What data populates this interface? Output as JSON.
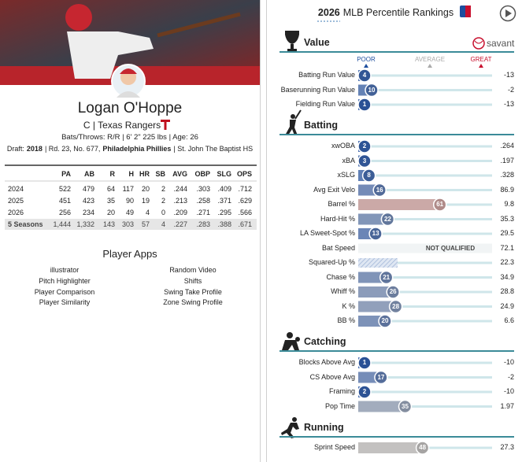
{
  "player": {
    "name": "Logan O'Hoppe",
    "team_line": "C | Texas Rangers",
    "bio": "Bats/Throws: R/R | 6' 2\" 225 lbs | Age: 26",
    "draft": [
      "Draft:",
      "2018",
      "| Rd. 23, No. 677,",
      "Philadelphia Phillies",
      "| St. John The Baptist HS"
    ]
  },
  "stats_table": {
    "columns": [
      "PA",
      "AB",
      "R",
      "H",
      "HR",
      "SB",
      "AVG",
      "OBP",
      "SLG",
      "OPS"
    ],
    "rows": [
      [
        "2024",
        "522",
        "479",
        "64",
        "117",
        "20",
        "2",
        ".244",
        ".303",
        ".409",
        ".712"
      ],
      [
        "2025",
        "451",
        "423",
        "35",
        "90",
        "19",
        "2",
        ".213",
        ".258",
        ".371",
        ".629"
      ],
      [
        "2026",
        "256",
        "234",
        "20",
        "49",
        "4",
        "0",
        ".209",
        ".271",
        ".295",
        ".566"
      ],
      [
        "5 Seasons",
        "1,444",
        "1,332",
        "143",
        "303",
        "57",
        "4",
        ".227",
        ".283",
        ".388",
        ".671"
      ]
    ]
  },
  "player_apps": {
    "title": "Player Apps",
    "columns": [
      [
        "illustrator",
        "Pitch Highlighter",
        "Player Comparison",
        "Player Similarity"
      ],
      [
        "Random Video",
        "Shifts",
        "Swing Take Profile",
        "Zone Swing Profile"
      ]
    ]
  },
  "rankings": {
    "year": "2026",
    "title": "MLB Percentile Rankings",
    "brand": "savant",
    "legend": [
      "POOR",
      "AVERAGE",
      "GREAT"
    ],
    "sections": [
      {
        "name": "Value",
        "rows": [
          {
            "label": "Batting Run Value",
            "percentile": 4,
            "value": "-13"
          },
          {
            "label": "Baserunning Run Value",
            "percentile": 10,
            "value": "-2"
          },
          {
            "label": "Fielding Run Value",
            "percentile": 1,
            "value": "-13"
          }
        ]
      },
      {
        "name": "Batting",
        "rows": [
          {
            "label": "xwOBA",
            "percentile": 2,
            "value": ".264"
          },
          {
            "label": "xBA",
            "percentile": 3,
            "value": ".197"
          },
          {
            "label": "xSLG",
            "percentile": 8,
            "value": ".328"
          },
          {
            "label": "Avg Exit Velo",
            "percentile": 16,
            "value": "86.9"
          },
          {
            "label": "Barrel %",
            "percentile": 61,
            "value": "9.8"
          },
          {
            "label": "Hard-Hit %",
            "percentile": 22,
            "value": "35.3"
          },
          {
            "label": "LA Sweet-Spot %",
            "percentile": 13,
            "value": "29.5"
          },
          {
            "label": "Bat Speed",
            "percentile": null,
            "note": "NOT QUALIFIED",
            "value": "72.1"
          },
          {
            "label": "Squared-Up %",
            "percentile": null,
            "value": "22.3"
          },
          {
            "label": "Chase %",
            "percentile": 21,
            "value": "34.9"
          },
          {
            "label": "Whiff %",
            "percentile": 26,
            "value": "28.8"
          },
          {
            "label": "K %",
            "percentile": 28,
            "value": "24.9"
          },
          {
            "label": "BB %",
            "percentile": 20,
            "value": "6.6"
          }
        ]
      },
      {
        "name": "Catching",
        "rows": [
          {
            "label": "Blocks Above Avg",
            "percentile": 1,
            "value": "-10"
          },
          {
            "label": "CS Above Avg",
            "percentile": 17,
            "value": "-2"
          },
          {
            "label": "Framing",
            "percentile": 2,
            "value": "-10"
          },
          {
            "label": "Pop Time",
            "percentile": 35,
            "value": "1.97"
          }
        ]
      },
      {
        "name": "Running",
        "rows": [
          {
            "label": "Sprint Speed",
            "percentile": 48,
            "value": "27.3"
          }
        ]
      }
    ]
  }
}
